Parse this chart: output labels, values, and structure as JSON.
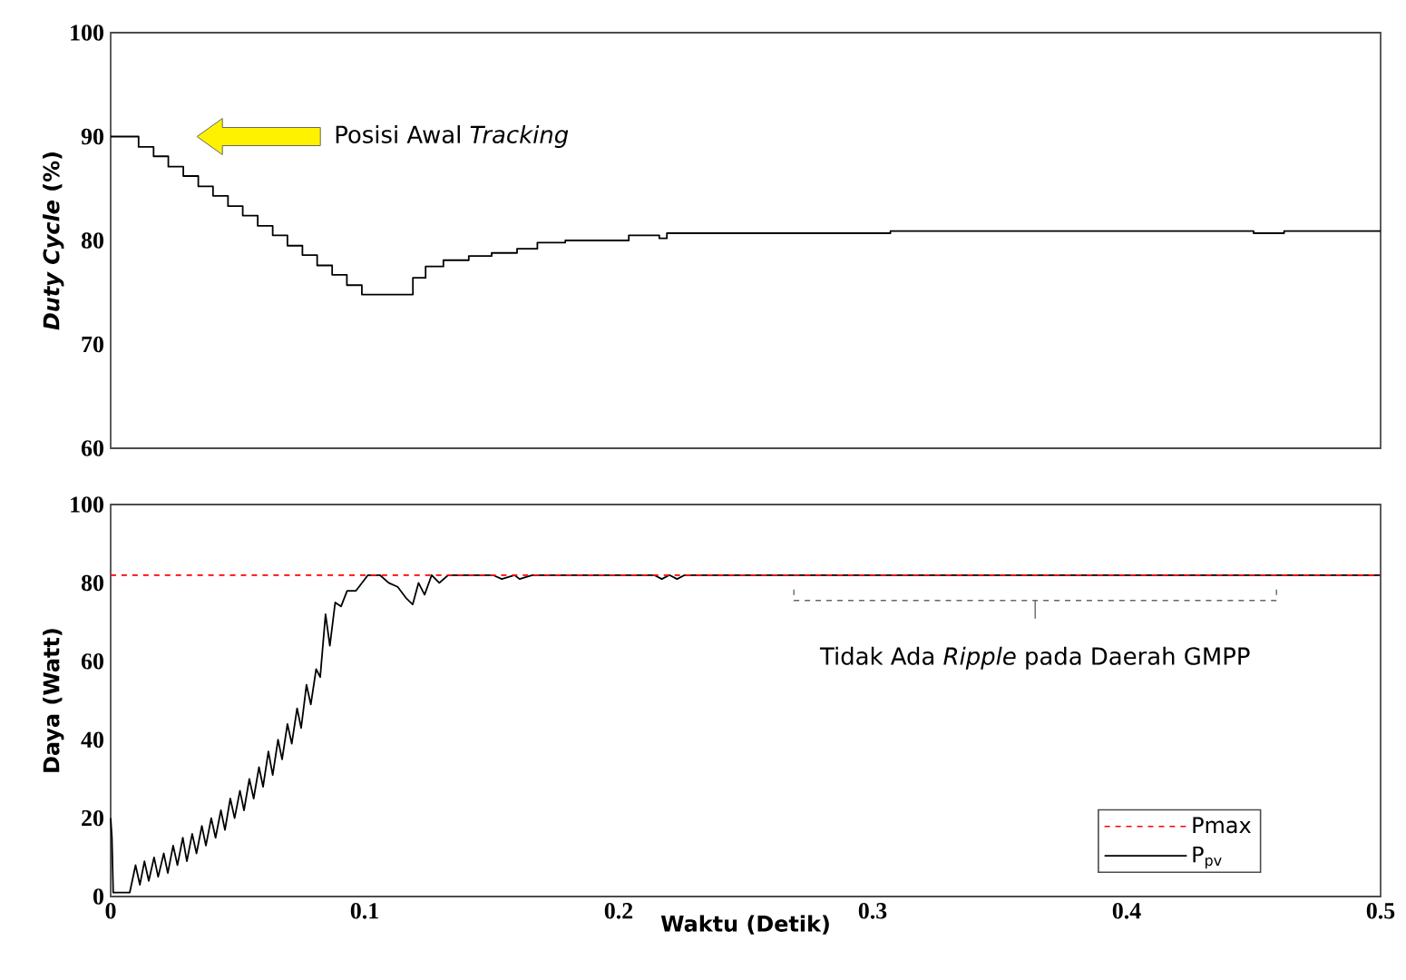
{
  "chart_data": [
    {
      "type": "step",
      "ylabel": "*Duty Cycle* (%)",
      "xlim": [
        0,
        0.5
      ],
      "ylim": [
        60,
        100
      ],
      "yticks": [
        60,
        70,
        80,
        90,
        100
      ],
      "tick_labels": "y",
      "grid": false,
      "series": [
        {
          "color": "#000000",
          "x": [
            0,
            0.011,
            0.0169,
            0.0227,
            0.0286,
            0.0345,
            0.0403,
            0.0462,
            0.052,
            0.0579,
            0.0638,
            0.0696,
            0.0755,
            0.0813,
            0.0872,
            0.093,
            0.0989,
            0.119,
            0.124,
            0.131,
            0.141,
            0.15,
            0.16,
            0.168,
            0.179,
            0.204,
            0.216,
            0.219,
            0.307,
            0.45,
            0.462,
            0.5
          ],
          "values": [
            90,
            89.0,
            88.1,
            87.1,
            86.2,
            85.2,
            84.3,
            83.3,
            82.4,
            81.4,
            80.5,
            79.5,
            78.6,
            77.6,
            76.7,
            75.7,
            74.8,
            76.4,
            77.5,
            78.1,
            78.5,
            78.8,
            79.2,
            79.8,
            80.0,
            80.5,
            80.2,
            80.7,
            80.9,
            80.7,
            80.9,
            80.9
          ]
        }
      ],
      "annotations": [
        "Posisi Awal *Tracking*"
      ]
    },
    {
      "type": "line",
      "xlabel": "Waktu (Detik)",
      "ylabel": "Daya (Watt)",
      "xlim": [
        0,
        0.5
      ],
      "ylim": [
        0,
        100
      ],
      "xticks": [
        0,
        0.1,
        0.2,
        0.3,
        0.4,
        0.5
      ],
      "yticks": [
        0,
        20,
        40,
        60,
        80,
        100
      ],
      "grid": false,
      "legend": "bottom right",
      "series": [
        {
          "name": "Pmax",
          "color": "#ff0000",
          "line_style": "dashed",
          "x": [
            0,
            0.5
          ],
          "values": [
            82,
            82
          ]
        },
        {
          "name": "P$_{pv}$",
          "color": "#000000",
          "line_style": "solid",
          "x": [
            0,
            0.0005,
            0.001,
            0.0075,
            0.0098,
            0.0115,
            0.0133,
            0.015,
            0.0171,
            0.0187,
            0.0209,
            0.0225,
            0.0246,
            0.0263,
            0.0284,
            0.03,
            0.0321,
            0.0338,
            0.0359,
            0.0375,
            0.0396,
            0.0413,
            0.0434,
            0.045,
            0.0471,
            0.0488,
            0.0509,
            0.0525,
            0.0546,
            0.0563,
            0.0584,
            0.06,
            0.0621,
            0.0638,
            0.0659,
            0.0675,
            0.0696,
            0.0713,
            0.0734,
            0.075,
            0.0771,
            0.0788,
            0.0809,
            0.0825,
            0.0846,
            0.0863,
            0.0884,
            0.0907,
            0.0931,
            0.0966,
            0.1013,
            0.106,
            0.1095,
            0.113,
            0.1165,
            0.1189,
            0.1212,
            0.1236,
            0.1264,
            0.1294,
            0.1329,
            0.14,
            0.1505,
            0.154,
            0.159,
            0.161,
            0.166,
            0.214,
            0.217,
            0.22,
            0.223,
            0.226,
            0.5
          ],
          "values": [
            20,
            15,
            1,
            1,
            8,
            3,
            9,
            4,
            10,
            5,
            11,
            6,
            13,
            8,
            15,
            9,
            16,
            11,
            18,
            13,
            20,
            15,
            22,
            17,
            25,
            20,
            27,
            22,
            30,
            25,
            33,
            28,
            37,
            31,
            40,
            35,
            44,
            39,
            48,
            43,
            54,
            49,
            58,
            56,
            72,
            64,
            75,
            74,
            78,
            78,
            82,
            82,
            80,
            79,
            76,
            74.5,
            80,
            77,
            82,
            80,
            82,
            82,
            82,
            81,
            82,
            81,
            82,
            82,
            81,
            82,
            81,
            82,
            82
          ]
        }
      ],
      "annotations": [
        "Tidak Ada *Ripple* pada Daerah GMPP"
      ]
    }
  ]
}
